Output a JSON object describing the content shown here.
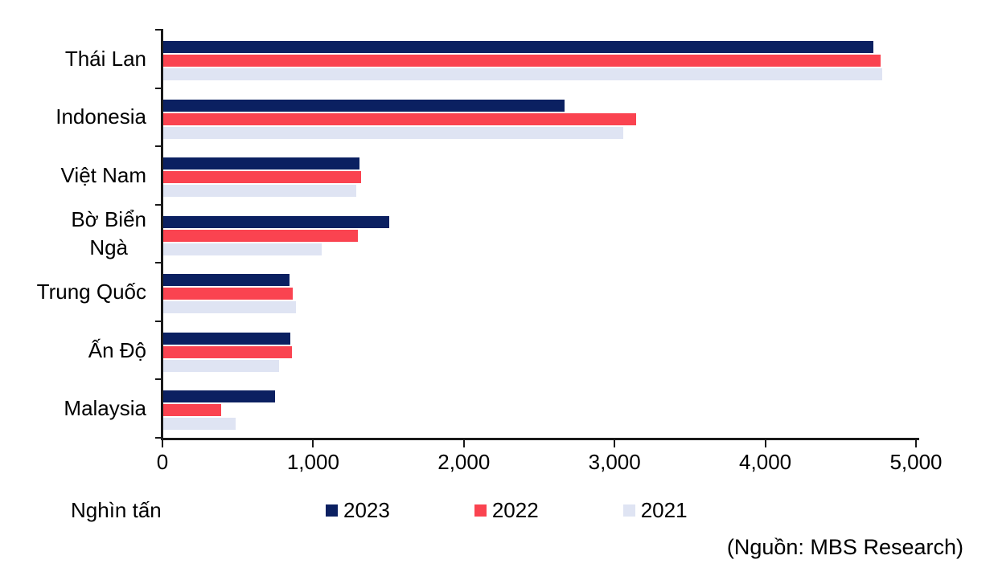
{
  "chart_data": {
    "type": "bar",
    "orientation": "horizontal",
    "title": "",
    "xlabel": "Nghìn tấn",
    "ylabel": "",
    "xlim": [
      0,
      5000
    ],
    "x_ticks": [
      "0",
      "1,000",
      "2,000",
      "3,000",
      "4,000",
      "5,000"
    ],
    "grid": false,
    "legend_position": "bottom",
    "categories": [
      "Thái Lan",
      "Indonesia",
      "Việt Nam",
      "Bờ Biển\nNgà",
      "Trung Quốc",
      "Ấn Độ",
      "Malaysia"
    ],
    "series": [
      {
        "name": "2023",
        "color": "#0b2061",
        "values": [
          4710,
          2660,
          1300,
          1500,
          835,
          845,
          740
        ]
      },
      {
        "name": "2022",
        "color": "#fa4350",
        "values": [
          4760,
          3140,
          1310,
          1290,
          860,
          855,
          385
        ]
      },
      {
        "name": "2021",
        "color": "#dfe4f3",
        "values": [
          4770,
          3050,
          1280,
          1050,
          880,
          770,
          480
        ]
      }
    ]
  },
  "unit_label": "Nghìn tấn",
  "source_note": "(Nguồn: MBS Research)",
  "colors": {
    "axis": "#1a1a1a",
    "background": "#ffffff",
    "series_2023": "#0b2061",
    "series_2022": "#fa4350",
    "series_2021": "#dfe4f3"
  }
}
